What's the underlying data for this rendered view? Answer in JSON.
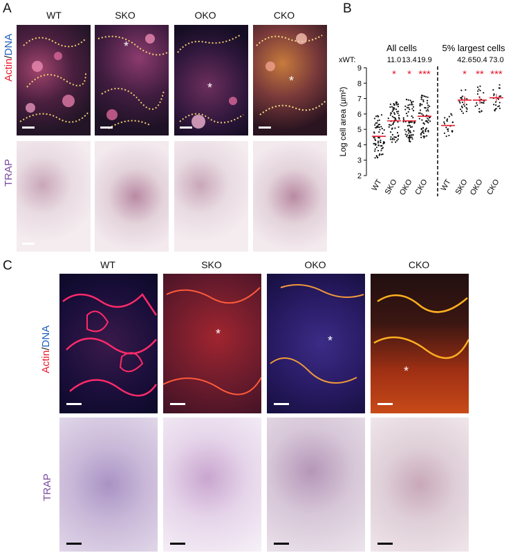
{
  "panel_a": {
    "letter": "A",
    "columns": [
      "WT",
      "SKO",
      "OKO",
      "CKO"
    ],
    "row_labels": {
      "actin": "Actin",
      "slash": "/",
      "dna": "DNA",
      "trap": "TRAP"
    }
  },
  "panel_b": {
    "letter": "B",
    "chart_data": {
      "type": "scatter",
      "ylabel": "Log cell area (µm²)",
      "ylim": [
        2,
        9
      ],
      "yticks": [
        "2",
        "3",
        "4",
        "5",
        "6",
        "7",
        "8",
        "9"
      ],
      "groups": [
        {
          "title": "All cells",
          "categories": [
            "WT",
            "SKO",
            "OKO",
            "CKO"
          ],
          "xwt": [
            "",
            "11.0",
            "13.4",
            "19.9"
          ],
          "means": [
            4.55,
            5.55,
            5.55,
            5.85
          ],
          "significance": [
            "",
            "*",
            "*",
            "***"
          ]
        },
        {
          "title": "5% largest cells",
          "categories": [
            "WT",
            "SKO",
            "OKO",
            "CKO"
          ],
          "xwt": [
            "",
            "42.6",
            "50.4",
            "73.0"
          ],
          "means": [
            5.25,
            6.9,
            6.9,
            7.05
          ],
          "significance": [
            "",
            "*",
            "**",
            "***"
          ]
        }
      ],
      "xwt_label": "xWT:"
    }
  },
  "panel_c": {
    "letter": "C",
    "columns": [
      "WT",
      "SKO",
      "OKO",
      "CKO"
    ],
    "row_labels": {
      "actin": "Actin",
      "slash": "/",
      "dna": "DNA",
      "trap": "TRAP"
    }
  },
  "colors": {
    "actin": "#e8192c",
    "dna": "#1f5fbf",
    "trap": "#7b4a9e",
    "sig": "#e8192c"
  }
}
